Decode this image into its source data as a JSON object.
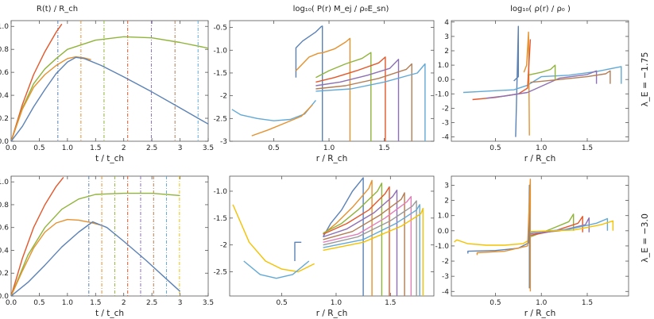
{
  "figure": {
    "colors": [
      "#5b82b6",
      "#e5912e",
      "#90b43a",
      "#e3572b",
      "#8d71b3",
      "#b37d55",
      "#e07fb8",
      "#999999",
      "#62a9d6",
      "#f3c200"
    ],
    "row_labels": [
      "λ_E = −1.75",
      "λ_E = −3.0"
    ],
    "col_titles": [
      "R(t) / R_ch",
      "log₁₀( P(r) M_ej / ρ₀E_sn)",
      "log₁₀( ρ(r) / ρ₀ )"
    ]
  },
  "chart_data": [
    {
      "type": "line",
      "title": "R(t) / R_ch",
      "xlabel": "t / t_ch",
      "ylabel": "",
      "xlim": [
        0,
        3.5
      ],
      "ylim": [
        0,
        1.05
      ],
      "xticks": [
        0.0,
        0.5,
        1.0,
        1.5,
        2.0,
        2.5,
        3.0,
        3.5
      ],
      "yticks": [
        0.0,
        0.2,
        0.4,
        0.6,
        0.8,
        1.0
      ],
      "series": [
        {
          "color": "#e3572b",
          "x": [
            0,
            0.2,
            0.4,
            0.6,
            0.8,
            0.9
          ],
          "y": [
            0,
            0.32,
            0.58,
            0.78,
            0.95,
            1.02
          ]
        },
        {
          "color": "#90b43a",
          "x": [
            0,
            0.2,
            0.4,
            0.6,
            0.8,
            1.0,
            1.5,
            2.0,
            2.5,
            3.0,
            3.5
          ],
          "y": [
            0,
            0.29,
            0.5,
            0.63,
            0.72,
            0.8,
            0.88,
            0.91,
            0.9,
            0.86,
            0.81
          ]
        },
        {
          "color": "#e5912e",
          "x": [
            0,
            0.2,
            0.4,
            0.6,
            0.8,
            1.0,
            1.15,
            1.3,
            1.42
          ],
          "y": [
            0,
            0.28,
            0.47,
            0.58,
            0.66,
            0.72,
            0.735,
            0.725,
            0.71
          ]
        },
        {
          "color": "#5b82b6",
          "x": [
            0,
            0.2,
            0.4,
            0.6,
            0.8,
            1.0,
            1.15,
            1.3,
            1.6,
            2.0,
            2.5,
            3.0,
            3.5
          ],
          "y": [
            0,
            0.13,
            0.3,
            0.45,
            0.59,
            0.69,
            0.73,
            0.72,
            0.66,
            0.56,
            0.43,
            0.29,
            0.15
          ]
        }
      ],
      "vlines": [
        {
          "x": 0.83,
          "color": "#5b82b6"
        },
        {
          "x": 1.24,
          "color": "#e5912e"
        },
        {
          "x": 1.65,
          "color": "#90b43a"
        },
        {
          "x": 2.07,
          "color": "#e3572b"
        },
        {
          "x": 2.49,
          "color": "#8d71b3"
        },
        {
          "x": 2.91,
          "color": "#b37d55"
        },
        {
          "x": 3.32,
          "color": "#62a9d6"
        }
      ]
    },
    {
      "type": "line",
      "title": "log₁₀( P(r) M_ej / ρ₀E_sn)",
      "xlabel": "r / R_ch",
      "ylabel": "",
      "xlim": [
        0.1,
        1.95
      ],
      "ylim": [
        -3.0,
        -0.35
      ],
      "xticks": [
        0.5,
        1.0,
        1.5
      ],
      "yticks": [
        -0.5,
        -1.0,
        -1.5,
        -2.0,
        -2.5,
        -3.0
      ],
      "series": [
        {
          "color": "#62a9d6",
          "x": [
            0.12,
            0.2,
            0.35,
            0.5,
            0.65,
            0.78,
            0.88
          ],
          "y": [
            -2.3,
            -2.42,
            -2.5,
            -2.55,
            -2.52,
            -2.4,
            -2.1
          ]
        },
        {
          "color": "#5b82b6",
          "x": [
            0.7,
            0.7,
            0.76,
            0.82,
            0.88,
            0.93,
            0.94,
            0.94
          ],
          "y": [
            -1.6,
            -0.95,
            -0.8,
            -0.7,
            -0.6,
            -0.48,
            -0.47,
            -3.0
          ]
        },
        {
          "color": "#e5912e",
          "x": [
            0.7,
            0.76,
            0.82,
            0.9,
            0.95,
            1.05,
            1.15,
            1.19,
            1.19
          ],
          "y": [
            -1.45,
            -1.3,
            -1.15,
            -1.07,
            -1.05,
            -0.97,
            -0.82,
            -0.74,
            -3.0
          ]
        },
        {
          "color": "#e5912e",
          "x": [
            0.3,
            0.45,
            0.6,
            0.75,
            0.85
          ],
          "y": [
            -2.88,
            -2.75,
            -2.6,
            -2.45,
            -2.2
          ]
        },
        {
          "color": "#90b43a",
          "x": [
            0.88,
            1.0,
            1.15,
            1.3,
            1.38,
            1.38
          ],
          "y": [
            -1.6,
            -1.45,
            -1.3,
            -1.18,
            -1.05,
            -3.0
          ]
        },
        {
          "color": "#e3572b",
          "x": [
            0.88,
            1.05,
            1.25,
            1.45,
            1.51,
            1.51
          ],
          "y": [
            -1.7,
            -1.6,
            -1.45,
            -1.28,
            -1.15,
            -3.0
          ]
        },
        {
          "color": "#8d71b3",
          "x": [
            0.88,
            1.1,
            1.35,
            1.55,
            1.63,
            1.63
          ],
          "y": [
            -1.78,
            -1.7,
            -1.55,
            -1.4,
            -1.2,
            -3.0
          ]
        },
        {
          "color": "#b37d55",
          "x": [
            0.88,
            1.15,
            1.45,
            1.7,
            1.75,
            1.75
          ],
          "y": [
            -1.85,
            -1.78,
            -1.62,
            -1.42,
            -1.3,
            -3.0
          ]
        },
        {
          "color": "#62a9d6",
          "x": [
            0.88,
            1.2,
            1.5,
            1.8,
            1.87,
            1.87
          ],
          "y": [
            -1.9,
            -1.85,
            -1.7,
            -1.5,
            -1.3,
            -3.0
          ]
        }
      ]
    },
    {
      "type": "line",
      "title": "log₁₀( ρ(r) / ρ₀ )",
      "xlabel": "r / R_ch",
      "ylabel": "",
      "xlim": [
        0.02,
        1.95
      ],
      "ylim": [
        -4.3,
        4.1
      ],
      "xticks": [
        0.5,
        1.0,
        1.5
      ],
      "yticks": [
        4,
        3,
        2,
        1,
        0,
        -1,
        -2,
        -3,
        -4
      ],
      "series": [
        {
          "color": "#5b82b6",
          "x": [
            0.7,
            0.75,
            0.75,
            0.72
          ],
          "y": [
            -0.1,
            0.2,
            3.7,
            -4.0
          ]
        },
        {
          "color": "#62a9d6",
          "x": [
            0.15,
            0.3,
            0.5,
            0.7,
            0.85,
            1.0,
            1.3,
            1.6,
            1.87,
            1.87
          ],
          "y": [
            -0.9,
            -0.85,
            -0.78,
            -0.72,
            -0.4,
            0.2,
            0.3,
            0.55,
            0.9,
            -0.3
          ]
        },
        {
          "color": "#e5912e",
          "x": [
            0.81,
            0.84,
            0.86,
            0.87
          ],
          "y": [
            0.5,
            1.0,
            3.3,
            -3.9
          ]
        },
        {
          "color": "#90b43a",
          "x": [
            0.85,
            1.0,
            1.1,
            1.15,
            1.15
          ],
          "y": [
            0.3,
            0.5,
            0.7,
            1.0,
            0.0
          ]
        },
        {
          "color": "#e3572b",
          "x": [
            0.25,
            0.5,
            0.75,
            0.85,
            0.88
          ],
          "y": [
            -1.4,
            -1.25,
            -1.0,
            -0.6,
            2.8
          ]
        },
        {
          "color": "#8d71b3",
          "x": [
            0.4,
            0.6,
            0.85,
            1.2,
            1.5,
            1.6,
            1.6
          ],
          "y": [
            -1.3,
            -1.15,
            -0.9,
            0.1,
            0.35,
            0.6,
            -0.3
          ]
        },
        {
          "color": "#b37d55",
          "x": [
            0.88,
            1.2,
            1.5,
            1.7,
            1.75,
            1.75
          ],
          "y": [
            -0.2,
            0.0,
            0.2,
            0.4,
            0.6,
            -0.3
          ]
        }
      ]
    },
    {
      "type": "line",
      "title": "",
      "xlabel": "t / t_ch",
      "ylabel": "",
      "xlim": [
        0,
        3.5
      ],
      "ylim": [
        0,
        1.05
      ],
      "xticks": [
        0.0,
        0.5,
        1.0,
        1.5,
        2.0,
        2.5,
        3.0,
        3.5
      ],
      "yticks": [
        0.0,
        0.2,
        0.4,
        0.6,
        0.8,
        1.0
      ],
      "series": [
        {
          "color": "#e3572b",
          "x": [
            0,
            0.2,
            0.4,
            0.6,
            0.8,
            0.93
          ],
          "y": [
            0,
            0.33,
            0.6,
            0.8,
            0.96,
            1.04
          ]
        },
        {
          "color": "#90b43a",
          "x": [
            0,
            0.3,
            0.6,
            0.9,
            1.2,
            1.5,
            2.0,
            2.5,
            3.0
          ],
          "y": [
            0,
            0.36,
            0.6,
            0.76,
            0.85,
            0.89,
            0.9,
            0.9,
            0.88
          ]
        },
        {
          "color": "#e5912e",
          "x": [
            0,
            0.2,
            0.4,
            0.6,
            0.8,
            1.0,
            1.2,
            1.4,
            1.6
          ],
          "y": [
            0,
            0.22,
            0.42,
            0.56,
            0.64,
            0.67,
            0.665,
            0.645,
            0.62
          ]
        },
        {
          "color": "#5b82b6",
          "x": [
            0,
            0.3,
            0.6,
            0.9,
            1.2,
            1.45,
            1.7,
            2.0,
            2.4,
            2.8,
            3.0
          ],
          "y": [
            0,
            0.12,
            0.27,
            0.43,
            0.56,
            0.65,
            0.6,
            0.48,
            0.31,
            0.13,
            0.04
          ]
        }
      ],
      "vlines": [
        {
          "x": 1.38,
          "color": "#5b82b6"
        },
        {
          "x": 1.61,
          "color": "#e5912e"
        },
        {
          "x": 1.84,
          "color": "#90b43a"
        },
        {
          "x": 2.07,
          "color": "#e3572b"
        },
        {
          "x": 2.3,
          "color": "#8d71b3"
        },
        {
          "x": 2.53,
          "color": "#b37d55"
        },
        {
          "x": 2.76,
          "color": "#62a9d6"
        },
        {
          "x": 2.99,
          "color": "#f3c200"
        }
      ]
    },
    {
      "type": "line",
      "title": "",
      "xlabel": "r / R_ch",
      "ylabel": "",
      "xlim": [
        0.02,
        1.9
      ],
      "ylim": [
        -2.95,
        -0.72
      ],
      "xticks": [
        0.5,
        1.0,
        1.5
      ],
      "yticks": [
        -1.0,
        -1.5,
        -2.0,
        -2.5
      ],
      "series": [
        {
          "color": "#f3c200",
          "x": [
            0.05,
            0.2,
            0.35,
            0.5,
            0.65,
            0.8
          ],
          "y": [
            -1.25,
            -1.95,
            -2.3,
            -2.45,
            -2.5,
            -2.35
          ]
        },
        {
          "color": "#62a9d6",
          "x": [
            0.15,
            0.3,
            0.45,
            0.6,
            0.75
          ],
          "y": [
            -2.3,
            -2.55,
            -2.62,
            -2.55,
            -2.3
          ]
        },
        {
          "color": "#5b82b6",
          "x": [
            0.62,
            0.62,
            0.68
          ],
          "y": [
            -2.3,
            -1.95,
            -1.95
          ]
        },
        {
          "color": "#5b82b6",
          "x": [
            0.88,
            0.95,
            1.05,
            1.15,
            1.23,
            1.25,
            1.25
          ],
          "y": [
            -1.85,
            -1.6,
            -1.35,
            -1.0,
            -0.8,
            -0.75,
            -2.95
          ]
        },
        {
          "color": "#e5912e",
          "x": [
            0.88,
            1.0,
            1.15,
            1.3,
            1.33,
            1.33
          ],
          "y": [
            -1.8,
            -1.6,
            -1.3,
            -0.95,
            -0.8,
            -2.95
          ]
        },
        {
          "color": "#90b43a",
          "x": [
            0.88,
            1.05,
            1.2,
            1.38,
            1.42,
            1.42
          ],
          "y": [
            -1.78,
            -1.6,
            -1.35,
            -1.0,
            -0.85,
            -2.95
          ]
        },
        {
          "color": "#e3572b",
          "x": [
            0.88,
            1.1,
            1.3,
            1.45,
            1.49,
            1.49
          ],
          "y": [
            -1.8,
            -1.6,
            -1.35,
            -1.05,
            -0.92,
            -2.95
          ]
        },
        {
          "color": "#8d71b3",
          "x": [
            0.88,
            1.1,
            1.35,
            1.52,
            1.56,
            1.56
          ],
          "y": [
            -1.85,
            -1.7,
            -1.4,
            -1.1,
            -0.98,
            -2.95
          ]
        },
        {
          "color": "#b37d55",
          "x": [
            0.88,
            1.15,
            1.4,
            1.6,
            1.63,
            1.63
          ],
          "y": [
            -1.9,
            -1.75,
            -1.45,
            -1.15,
            -1.03,
            -2.95
          ]
        },
        {
          "color": "#e07fb8",
          "x": [
            0.88,
            1.2,
            1.45,
            1.65,
            1.69,
            1.69
          ],
          "y": [
            -1.95,
            -1.8,
            -1.5,
            -1.2,
            -1.1,
            -2.95
          ]
        },
        {
          "color": "#999999",
          "x": [
            0.88,
            1.2,
            1.5,
            1.7,
            1.74,
            1.74
          ],
          "y": [
            -2.0,
            -1.85,
            -1.55,
            -1.28,
            -1.18,
            -2.95
          ]
        },
        {
          "color": "#62a9d6",
          "x": [
            0.88,
            1.25,
            1.55,
            1.74,
            1.77,
            1.77
          ],
          "y": [
            -2.05,
            -1.9,
            -1.6,
            -1.35,
            -1.25,
            -2.95
          ]
        },
        {
          "color": "#f3c200",
          "x": [
            0.88,
            1.25,
            1.6,
            1.78,
            1.8,
            1.8
          ],
          "y": [
            -2.1,
            -1.95,
            -1.65,
            -1.42,
            -1.32,
            -2.95
          ]
        }
      ]
    },
    {
      "type": "line",
      "title": "",
      "xlabel": "r / R_ch",
      "ylabel": "",
      "xlim": [
        0.02,
        1.95
      ],
      "ylim": [
        -4.3,
        3.6
      ],
      "xticks": [
        0.5,
        1.0,
        1.5
      ],
      "yticks": [
        3,
        2,
        1,
        0,
        -1,
        -2,
        -3,
        -4
      ],
      "series": [
        {
          "color": "#f3c200",
          "x": [
            0.05,
            0.08,
            0.2,
            0.4,
            0.6,
            0.8,
            0.87
          ],
          "y": [
            -0.75,
            -0.6,
            -0.85,
            -0.95,
            -0.95,
            -0.85,
            -0.6
          ]
        },
        {
          "color": "#5b82b6",
          "x": [
            0.2,
            0.2,
            0.5,
            0.75,
            0.86,
            0.87,
            0.87
          ],
          "y": [
            -1.5,
            -1.35,
            -1.3,
            -1.15,
            -0.8,
            3.0,
            -3.8
          ]
        },
        {
          "color": "#e5912e",
          "x": [
            0.3,
            0.3,
            0.6,
            0.85,
            0.88,
            0.88
          ],
          "y": [
            -1.6,
            -1.45,
            -1.35,
            -1.0,
            3.4,
            -4.0
          ]
        },
        {
          "color": "#90b43a",
          "x": [
            0.88,
            1.1,
            1.3,
            1.35,
            1.35
          ],
          "y": [
            -0.4,
            0.1,
            0.6,
            1.1,
            0.0
          ]
        },
        {
          "color": "#e3572b",
          "x": [
            0.88,
            1.15,
            1.4,
            1.45,
            1.45
          ],
          "y": [
            -0.3,
            0.0,
            0.5,
            0.95,
            -0.1
          ]
        },
        {
          "color": "#8d71b3",
          "x": [
            0.88,
            1.2,
            1.48,
            1.52,
            1.52
          ],
          "y": [
            -0.2,
            0.0,
            0.4,
            0.85,
            -0.1
          ]
        },
        {
          "color": "#62a9d6",
          "x": [
            0.88,
            1.3,
            1.6,
            1.72,
            1.72
          ],
          "y": [
            -0.1,
            0.1,
            0.5,
            0.8,
            0.0
          ]
        },
        {
          "color": "#f3c200",
          "x": [
            0.88,
            1.35,
            1.65,
            1.78,
            1.78
          ],
          "y": [
            -0.05,
            0.05,
            0.4,
            0.65,
            0.0
          ]
        }
      ]
    }
  ]
}
